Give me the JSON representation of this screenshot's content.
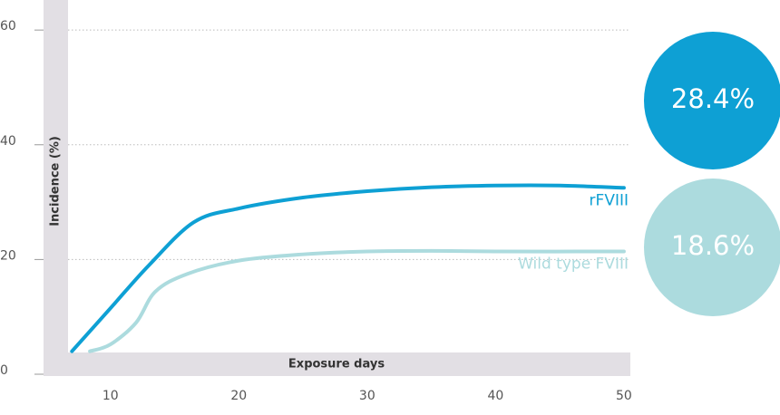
{
  "chart_data": {
    "type": "line",
    "x_label": "Exposure days",
    "y_label": "Incidence (%)",
    "xlim": [
      5,
      50.5
    ],
    "ylim": [
      0,
      65
    ],
    "xticks": [
      10,
      20,
      30,
      40,
      50
    ],
    "yticks": [
      0,
      20,
      40,
      60
    ],
    "grid": true,
    "series": [
      {
        "name": "rFVIII",
        "color": "#0ea0d4",
        "x": [
          7,
          10,
          13,
          16.5,
          20,
          25,
          30,
          35,
          40,
          45,
          50
        ],
        "values": [
          4,
          11.5,
          19,
          26.5,
          28.9,
          30.8,
          31.9,
          32.6,
          32.9,
          32.9,
          32.5
        ]
      },
      {
        "name": "Wild type FVIII",
        "color": "#acdbde",
        "x": [
          8.4,
          10,
          12,
          13.5,
          16,
          20,
          25,
          30,
          35,
          40,
          50
        ],
        "values": [
          4,
          5.2,
          9,
          14.4,
          17.5,
          19.8,
          20.9,
          21.4,
          21.5,
          21.4,
          21.4
        ]
      }
    ],
    "callouts": [
      "28.4%",
      "18.6%"
    ]
  }
}
